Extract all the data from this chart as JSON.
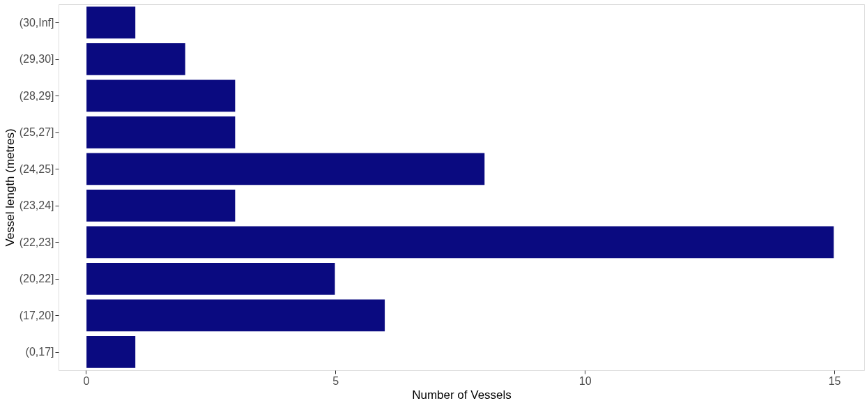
{
  "chart_data": {
    "type": "bar",
    "orientation": "horizontal",
    "xlabel": "Number of Vessels",
    "ylabel": "Vessel length (metres)",
    "categories": [
      "(30,Inf]",
      "(29,30]",
      "(28,29]",
      "(25,27]",
      "(24,25]",
      "(23,24]",
      "(22,23]",
      "(20,22]",
      "(17,20]",
      "(0,17]"
    ],
    "values": [
      1,
      2,
      3,
      3,
      8,
      3,
      15,
      5,
      6,
      1
    ],
    "color": "#0a0a80",
    "xlim": [
      -0.55,
      15.6
    ],
    "xticks": [
      0,
      5,
      10,
      15
    ],
    "grid": false
  }
}
